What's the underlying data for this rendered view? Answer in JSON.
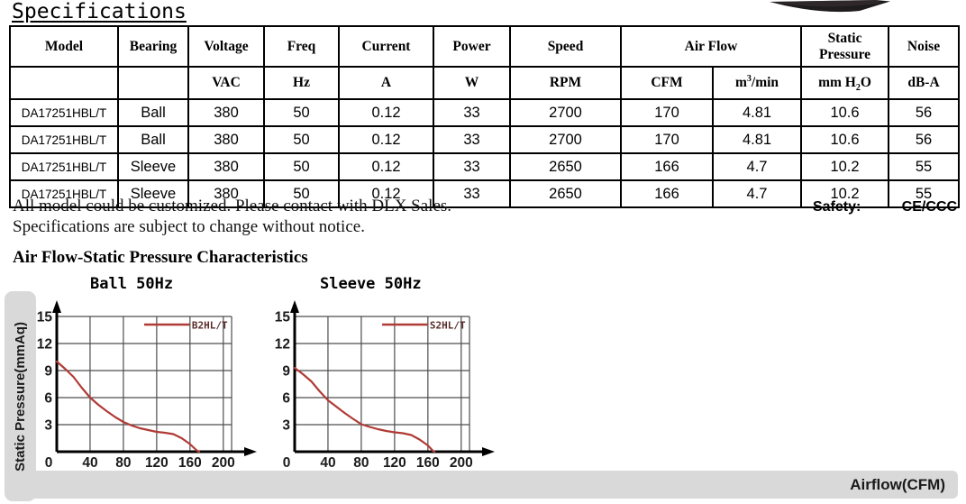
{
  "page": {
    "title": "Specifications",
    "note1": "All model could be customized. Please contact with DLX Sales.",
    "note2": "Specifications are subject to change without notice.",
    "safety_label": "Safety:",
    "safety_value": "CE/CCC",
    "section_heading": "Air Flow-Static Pressure Characteristics"
  },
  "colors": {
    "curve_red": "#b03b36",
    "legend_text": "#5a2d2d",
    "grid_gray": "#4d4d4d",
    "bar_gray": "#d9d9d9",
    "fan_dark": "#1f1c1d",
    "fan_mid": "#3a3335"
  },
  "table": {
    "header1": {
      "model": "Model",
      "bearing": "Bearing",
      "voltage": "Voltage",
      "freq": "Freq",
      "current": "Current",
      "power": "Power",
      "speed": "Speed",
      "airflow": "Air Flow",
      "static_pressure": "Static Pressure",
      "noise": "Noise"
    },
    "units": {
      "vac": "VAC",
      "hz": "Hz",
      "a": "A",
      "w": "W",
      "rpm": "RPM",
      "cfm": "CFM",
      "m3min": {
        "pre": "m",
        "sup": "3",
        "post": "/min"
      },
      "mmh2o": {
        "pre": "mm H",
        "sub": "2",
        "post": "O"
      },
      "dba": "dB-A"
    },
    "rows": [
      [
        "DA17251HBL/T",
        "Ball",
        "380",
        "50",
        "0.12",
        "33",
        "2700",
        "170",
        "4.81",
        "10.6",
        "56"
      ],
      [
        "DA17251HBL/T",
        "Ball",
        "380",
        "50",
        "0.12",
        "33",
        "2700",
        "170",
        "4.81",
        "10.6",
        "56"
      ],
      [
        "DA17251HBL/T",
        "Sleeve",
        "380",
        "50",
        "0.12",
        "33",
        "2650",
        "166",
        "4.7",
        "10.2",
        "55"
      ],
      [
        "DA17251HBL/T",
        "Sleeve",
        "380",
        "50",
        "0.12",
        "33",
        "2650",
        "166",
        "4.7",
        "10.2",
        "55"
      ]
    ]
  },
  "axis_labels": {
    "y": "Static Pressure(mmAq)",
    "x": "Airflow(CFM)"
  },
  "chart_data": [
    {
      "type": "line",
      "title": "Ball 50Hz",
      "legend": "B2HL/T",
      "xlabel": "Airflow(CFM)",
      "ylabel": "Static Pressure(mmAq)",
      "xticks": [
        0,
        40,
        80,
        120,
        160,
        200
      ],
      "yticks": [
        15,
        12,
        9,
        6,
        3
      ],
      "xlim": [
        0,
        210
      ],
      "ylim": [
        0,
        15.75
      ],
      "grid": true,
      "legend_position": "top-right-inside",
      "series": [
        {
          "name": "B2HL/T",
          "points": [
            [
              0,
              10.0
            ],
            [
              10,
              9.2
            ],
            [
              20,
              8.3
            ],
            [
              30,
              7.1
            ],
            [
              40,
              6.0
            ],
            [
              50,
              5.2
            ],
            [
              60,
              4.5
            ],
            [
              70,
              3.85
            ],
            [
              80,
              3.3
            ],
            [
              90,
              2.9
            ],
            [
              100,
              2.6
            ],
            [
              110,
              2.4
            ],
            [
              120,
              2.2
            ],
            [
              130,
              2.1
            ],
            [
              140,
              1.95
            ],
            [
              150,
              1.5
            ],
            [
              160,
              0.85
            ],
            [
              168,
              0.15
            ],
            [
              171,
              0
            ]
          ]
        }
      ]
    },
    {
      "type": "line",
      "title": "Sleeve 50Hz",
      "legend": "S2HL/T",
      "xlabel": "Airflow(CFM)",
      "ylabel": "Static Pressure(mmAq)",
      "xticks": [
        0,
        40,
        80,
        120,
        160,
        200
      ],
      "yticks": [
        15,
        12,
        9,
        6,
        3
      ],
      "xlim": [
        0,
        210
      ],
      "ylim": [
        0,
        15.75
      ],
      "grid": true,
      "legend_position": "top-right-inside",
      "series": [
        {
          "name": "S2HL/T",
          "points": [
            [
              0,
              9.3
            ],
            [
              10,
              8.6
            ],
            [
              20,
              7.8
            ],
            [
              30,
              6.7
            ],
            [
              40,
              5.7
            ],
            [
              50,
              5.0
            ],
            [
              60,
              4.3
            ],
            [
              70,
              3.65
            ],
            [
              80,
              3.05
            ],
            [
              90,
              2.75
            ],
            [
              100,
              2.5
            ],
            [
              110,
              2.3
            ],
            [
              120,
              2.15
            ],
            [
              130,
              2.05
            ],
            [
              140,
              1.85
            ],
            [
              150,
              1.35
            ],
            [
              160,
              0.7
            ],
            [
              166,
              0.1
            ],
            [
              168,
              0
            ]
          ]
        }
      ]
    }
  ]
}
